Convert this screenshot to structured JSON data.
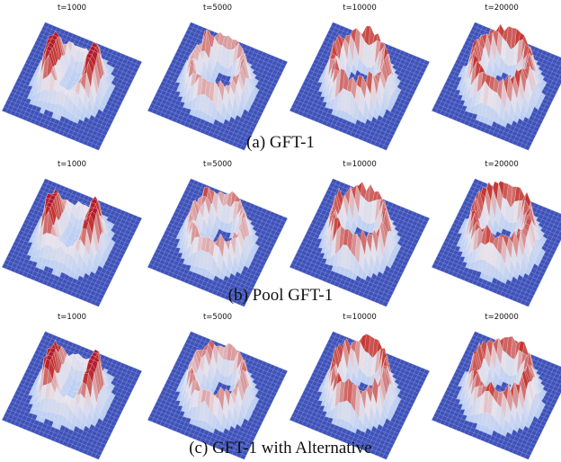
{
  "rows": [
    {
      "caption": "(a)  GFT-1",
      "panels": [
        {
          "label": "t=1000",
          "pattern": "figure-eight"
        },
        {
          "label": "t=5000",
          "pattern": "two-lobes-ring"
        },
        {
          "label": "t=10000",
          "pattern": "ring"
        },
        {
          "label": "t=20000",
          "pattern": "ring"
        }
      ]
    },
    {
      "caption": "(b)  Pool GFT-1",
      "panels": [
        {
          "label": "t=1000",
          "pattern": "figure-eight"
        },
        {
          "label": "t=5000",
          "pattern": "two-lobes-ring"
        },
        {
          "label": "t=10000",
          "pattern": "ring"
        },
        {
          "label": "t=20000",
          "pattern": "ring"
        }
      ]
    },
    {
      "caption": "(c)  GFT-1 with Alternative",
      "panels": [
        {
          "label": "t=1000",
          "pattern": "figure-eight"
        },
        {
          "label": "t=5000",
          "pattern": "two-lobes-ring"
        },
        {
          "label": "t=10000",
          "pattern": "ring"
        },
        {
          "label": "t=20000",
          "pattern": "ring"
        }
      ]
    }
  ],
  "colors": {
    "floor": "#3f52b8",
    "grid": "#8a98de",
    "low": "#b7cdf4",
    "mid": "#e9e3ea",
    "high": "#c63a34",
    "peak": "#b2182b"
  }
}
